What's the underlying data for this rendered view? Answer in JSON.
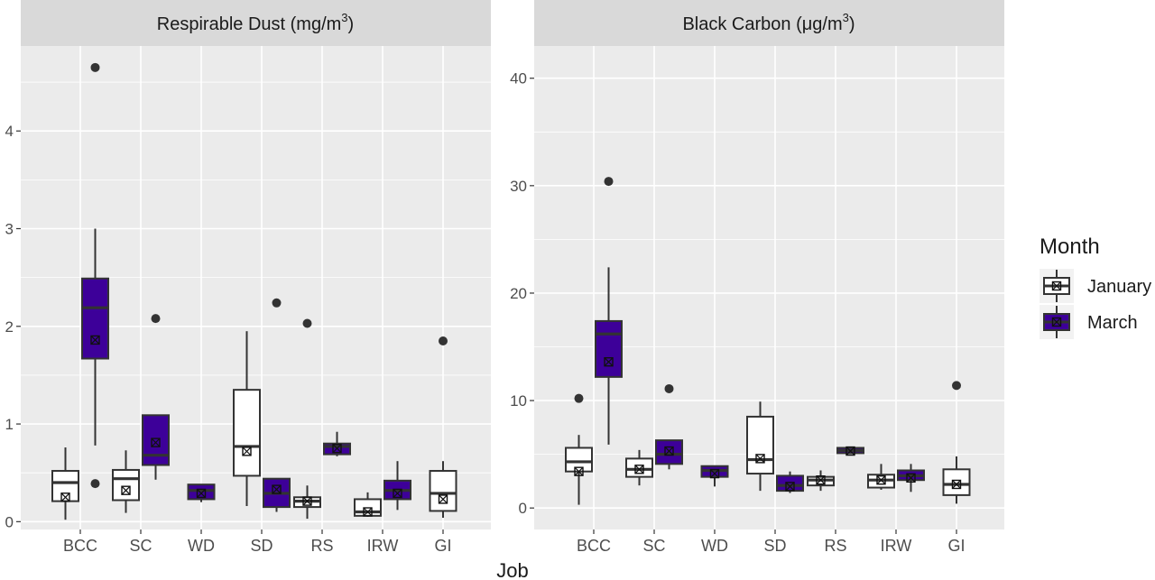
{
  "colors": {
    "january": "#ffffff",
    "march": "#3d0099",
    "panel_bg": "#ebebeb",
    "strip_bg": "#d9d9d9",
    "grid": "#ffffff",
    "stroke": "#333333"
  },
  "legend": {
    "title": "Month",
    "entries": [
      {
        "label": "January",
        "fill": "#ffffff"
      },
      {
        "label": "March",
        "fill": "#3d0099"
      }
    ]
  },
  "chart_data": [
    {
      "type": "boxplot",
      "title": "Respirable Dust (mg/m3)",
      "title_unit_base": "Respirable Dust (mg/m",
      "title_unit_sup": "3",
      "title_unit_close": ")",
      "xlabel": "Job",
      "ylabel": "",
      "categories": [
        "BCC",
        "SC",
        "WD",
        "SD",
        "RS",
        "IRW",
        "GI"
      ],
      "yticks": [
        "0",
        "1",
        "2",
        "3",
        "4"
      ],
      "ylim": [
        -0.08,
        4.87
      ],
      "grid": true,
      "series": [
        {
          "name": "January",
          "boxes": [
            {
              "min": 0.02,
              "q1": 0.21,
              "median": 0.4,
              "q3": 0.52,
              "max": 0.76,
              "mean": 0.25,
              "outliers": []
            },
            {
              "min": 0.09,
              "q1": 0.22,
              "median": 0.44,
              "q3": 0.53,
              "max": 0.73,
              "mean": 0.32,
              "outliers": []
            },
            null,
            {
              "min": 0.16,
              "q1": 0.47,
              "median": 0.77,
              "q3": 1.35,
              "max": 1.95,
              "mean": 0.72,
              "outliers": []
            },
            {
              "min": 0.03,
              "q1": 0.15,
              "median": 0.21,
              "q3": 0.25,
              "max": 0.37,
              "mean": 0.21,
              "outliers": [
                2.03
              ]
            },
            {
              "min": 0.05,
              "q1": 0.06,
              "median": 0.1,
              "q3": 0.23,
              "max": 0.3,
              "mean": 0.1,
              "outliers": []
            },
            {
              "min": 0.04,
              "q1": 0.11,
              "median": 0.29,
              "q3": 0.52,
              "max": 0.62,
              "mean": 0.23,
              "outliers": [
                1.85
              ]
            }
          ]
        },
        {
          "name": "March",
          "boxes": [
            {
              "min": 0.78,
              "q1": 1.67,
              "median": 2.19,
              "q3": 2.49,
              "max": 3.0,
              "mean": 1.86,
              "outliers": [
                4.65,
                0.39
              ]
            },
            {
              "min": 0.43,
              "q1": 0.58,
              "median": 0.68,
              "q3": 1.09,
              "max": 1.09,
              "mean": 0.81,
              "outliers": [
                2.08
              ]
            },
            {
              "min": 0.2,
              "q1": 0.23,
              "median": 0.32,
              "q3": 0.38,
              "max": 0.38,
              "mean": 0.29,
              "outliers": []
            },
            {
              "min": 0.1,
              "q1": 0.15,
              "median": 0.29,
              "q3": 0.44,
              "max": 0.44,
              "mean": 0.33,
              "outliers": [
                2.24
              ]
            },
            {
              "min": 0.67,
              "q1": 0.69,
              "median": 0.77,
              "q3": 0.8,
              "max": 0.92,
              "mean": 0.75,
              "outliers": []
            },
            {
              "min": 0.12,
              "q1": 0.23,
              "median": 0.32,
              "q3": 0.42,
              "max": 0.62,
              "mean": 0.29,
              "outliers": []
            },
            null
          ]
        }
      ]
    },
    {
      "type": "boxplot",
      "title": "Black Carbon (μg/m3)",
      "title_unit_base": "Black Carbon (μg/m",
      "title_unit_sup": "3",
      "title_unit_close": ")",
      "xlabel": "Job",
      "ylabel": "",
      "categories": [
        "BCC",
        "SC",
        "WD",
        "SD",
        "RS",
        "IRW",
        "GI"
      ],
      "yticks": [
        "0",
        "10",
        "20",
        "30",
        "40"
      ],
      "ylim": [
        -2.0,
        43.0
      ],
      "grid": true,
      "series": [
        {
          "name": "January",
          "boxes": [
            {
              "min": 0.3,
              "q1": 3.4,
              "median": 4.3,
              "q3": 5.6,
              "max": 6.8,
              "mean": 3.4,
              "outliers": [
                10.2
              ]
            },
            {
              "min": 2.1,
              "q1": 2.9,
              "median": 3.6,
              "q3": 4.6,
              "max": 5.4,
              "mean": 3.6,
              "outliers": []
            },
            null,
            {
              "min": 1.6,
              "q1": 3.2,
              "median": 4.5,
              "q3": 8.5,
              "max": 9.9,
              "mean": 4.6,
              "outliers": []
            },
            {
              "min": 1.6,
              "q1": 2.1,
              "median": 2.6,
              "q3": 2.9,
              "max": 3.5,
              "mean": 2.6,
              "outliers": []
            },
            {
              "min": 1.7,
              "q1": 1.9,
              "median": 2.6,
              "q3": 3.1,
              "max": 4.1,
              "mean": 2.6,
              "outliers": []
            },
            {
              "min": 0.4,
              "q1": 1.2,
              "median": 2.2,
              "q3": 3.6,
              "max": 4.8,
              "mean": 2.2,
              "outliers": [
                11.4
              ]
            }
          ]
        },
        {
          "name": "March",
          "boxes": [
            {
              "min": 5.9,
              "q1": 12.2,
              "median": 16.2,
              "q3": 17.4,
              "max": 22.4,
              "mean": 13.6,
              "outliers": [
                30.4
              ]
            },
            {
              "min": 3.6,
              "q1": 4.1,
              "median": 5.0,
              "q3": 6.3,
              "max": 6.3,
              "mean": 5.3,
              "outliers": [
                11.1
              ]
            },
            {
              "min": 2.0,
              "q1": 2.9,
              "median": 3.5,
              "q3": 3.9,
              "max": 3.9,
              "mean": 3.2,
              "outliers": []
            },
            {
              "min": 1.4,
              "q1": 1.6,
              "median": 2.1,
              "q3": 3.0,
              "max": 3.4,
              "mean": 2.0,
              "outliers": []
            },
            {
              "min": 5.1,
              "q1": 5.1,
              "median": 5.35,
              "q3": 5.6,
              "max": 5.7,
              "mean": 5.3,
              "outliers": []
            },
            {
              "min": 1.5,
              "q1": 2.6,
              "median": 3.0,
              "q3": 3.5,
              "max": 4.1,
              "mean": 2.8,
              "outliers": []
            },
            null
          ]
        }
      ]
    }
  ]
}
